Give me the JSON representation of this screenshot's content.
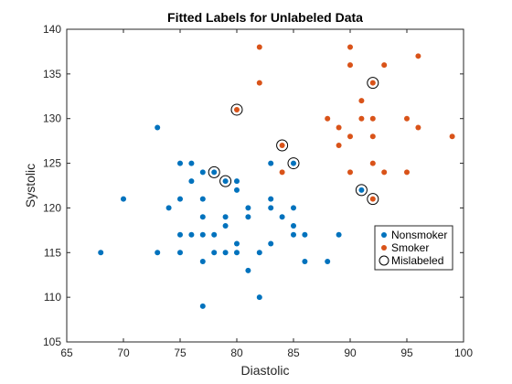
{
  "chart_data": {
    "type": "scatter",
    "title": "Fitted Labels for Unlabeled Data",
    "xlabel": "Diastolic",
    "ylabel": "Systolic",
    "xlim": [
      65,
      100
    ],
    "ylim": [
      105,
      140
    ],
    "xticks": [
      65,
      70,
      75,
      80,
      85,
      90,
      95,
      100
    ],
    "yticks": [
      105,
      110,
      115,
      120,
      125,
      130,
      135,
      140
    ],
    "grid": false,
    "legend_position": "right",
    "colors": {
      "Nonsmoker": "#0072BD",
      "Smoker": "#D95319",
      "Mislabeled": "#000000"
    },
    "series": [
      {
        "name": "Nonsmoker",
        "points": [
          [
            68,
            115
          ],
          [
            70,
            121
          ],
          [
            73,
            129
          ],
          [
            73,
            115
          ],
          [
            74,
            120
          ],
          [
            75,
            125
          ],
          [
            75,
            121
          ],
          [
            75,
            117
          ],
          [
            75,
            115
          ],
          [
            76,
            125
          ],
          [
            76,
            123
          ],
          [
            76,
            117
          ],
          [
            77,
            124
          ],
          [
            77,
            121
          ],
          [
            77,
            119
          ],
          [
            77,
            117
          ],
          [
            77,
            114
          ],
          [
            77,
            109
          ],
          [
            78,
            124
          ],
          [
            78,
            117
          ],
          [
            78,
            115
          ],
          [
            79,
            123
          ],
          [
            79,
            119
          ],
          [
            79,
            118
          ],
          [
            79,
            115
          ],
          [
            80,
            123
          ],
          [
            80,
            122
          ],
          [
            80,
            116
          ],
          [
            80,
            115
          ],
          [
            81,
            120
          ],
          [
            81,
            119
          ],
          [
            81,
            113
          ],
          [
            82,
            115
          ],
          [
            82,
            110
          ],
          [
            83,
            125
          ],
          [
            83,
            121
          ],
          [
            83,
            120
          ],
          [
            83,
            116
          ],
          [
            84,
            119
          ],
          [
            85,
            125
          ],
          [
            85,
            120
          ],
          [
            85,
            118
          ],
          [
            85,
            117
          ],
          [
            86,
            117
          ],
          [
            86,
            114
          ],
          [
            88,
            114
          ],
          [
            89,
            117
          ],
          [
            91,
            122
          ]
        ]
      },
      {
        "name": "Smoker",
        "points": [
          [
            80,
            131
          ],
          [
            82,
            138
          ],
          [
            82,
            134
          ],
          [
            84,
            127
          ],
          [
            84,
            124
          ],
          [
            88,
            130
          ],
          [
            89,
            129
          ],
          [
            89,
            127
          ],
          [
            90,
            138
          ],
          [
            90,
            136
          ],
          [
            90,
            128
          ],
          [
            90,
            124
          ],
          [
            91,
            132
          ],
          [
            91,
            130
          ],
          [
            92,
            134
          ],
          [
            92,
            130
          ],
          [
            92,
            128
          ],
          [
            92,
            125
          ],
          [
            92,
            121
          ],
          [
            93,
            136
          ],
          [
            93,
            124
          ],
          [
            95,
            130
          ],
          [
            95,
            124
          ],
          [
            96,
            137
          ],
          [
            96,
            129
          ],
          [
            99,
            128
          ]
        ]
      },
      {
        "name": "Mislabeled",
        "points": [
          [
            78,
            124
          ],
          [
            79,
            123
          ],
          [
            80,
            131
          ],
          [
            84,
            127
          ],
          [
            85,
            125
          ],
          [
            91,
            122
          ],
          [
            92,
            134
          ],
          [
            92,
            121
          ]
        ]
      }
    ]
  }
}
